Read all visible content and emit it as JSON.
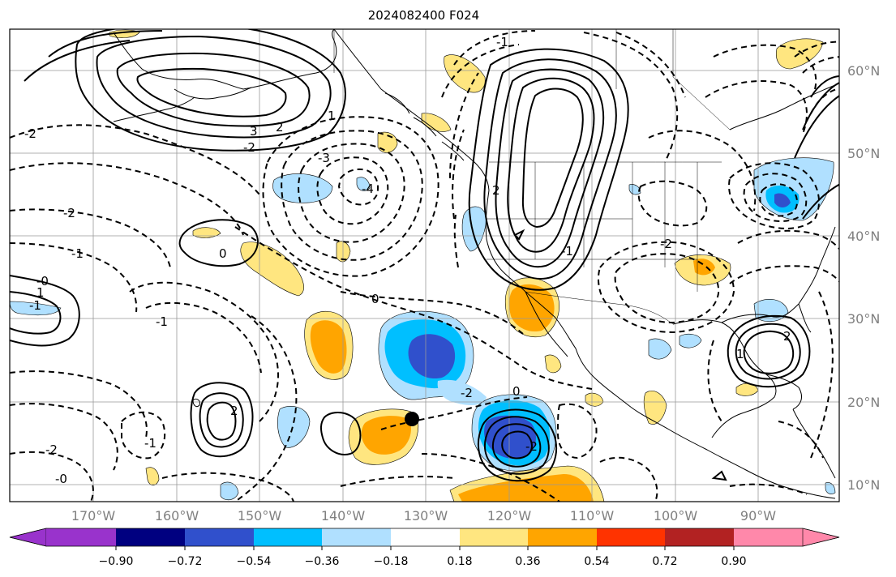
{
  "title": "2024082400 F024",
  "longitude_labels": [
    "170°W",
    "160°W",
    "150°W",
    "140°W",
    "130°W",
    "120°W",
    "110°W",
    "100°W",
    "90°W"
  ],
  "latitude_labels": [
    "60°N",
    "50°N",
    "40°N",
    "30°N",
    "20°N",
    "10°N"
  ],
  "colorbar": {
    "tick_labels": [
      "−0.90",
      "−0.72",
      "−0.54",
      "−0.36",
      "−0.18",
      "0.18",
      "0.36",
      "0.54",
      "0.72",
      "0.90"
    ],
    "colors": [
      "#9933cc",
      "#000080",
      "#3050cc",
      "#00bfff",
      "#b0e0ff",
      "#ffffff",
      "#ffe680",
      "#ffa500",
      "#ff3300",
      "#b22222",
      "#ff88aa"
    ]
  },
  "contour_labels": [
    "3",
    "2",
    "-2",
    "-2",
    "-1",
    "-1",
    "0",
    "0",
    "-1",
    "1",
    "-1",
    "-0",
    "2",
    "-0",
    "-2",
    "-4",
    "-3",
    "2",
    "-1",
    "-2",
    "-1",
    "-2",
    "1",
    "2",
    "0",
    "-2",
    "1",
    "-2"
  ],
  "marker": "storm-center"
}
